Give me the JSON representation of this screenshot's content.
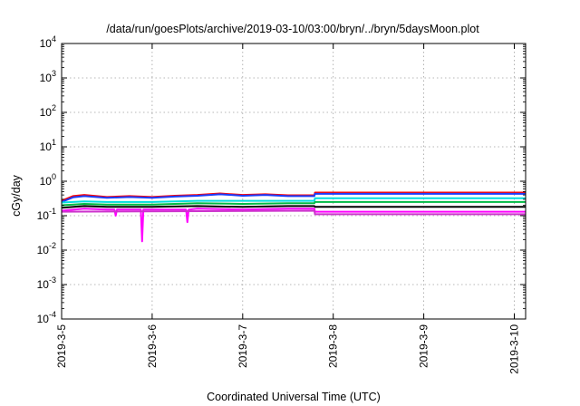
{
  "chart_data": {
    "type": "line",
    "title": "/data/run/goesPlots/archive/2019-03-10/03:00/bryn/../bryn/5daysMoon.plot",
    "xlabel": "Coordinated Universal Time (UTC)",
    "ylabel": "cGy/day",
    "yscale": "log",
    "ylim": [
      0.0001,
      10000
    ],
    "xlim": [
      "2019-03-05T00:00",
      "2019-03-10T03:00"
    ],
    "grid": true,
    "x_ticks": [
      "2019-3-5",
      "2019-3-6",
      "2019-3-7",
      "2019-3-8",
      "2019-3-9",
      "2019-3-10"
    ],
    "y_ticks": [
      {
        "base": "10",
        "exp": "-4"
      },
      {
        "base": "10",
        "exp": "-3"
      },
      {
        "base": "10",
        "exp": "-2"
      },
      {
        "base": "10",
        "exp": "-1"
      },
      {
        "base": "10",
        "exp": "0"
      },
      {
        "base": "10",
        "exp": "1"
      },
      {
        "base": "10",
        "exp": "2"
      },
      {
        "base": "10",
        "exp": "3"
      },
      {
        "base": "10",
        "exp": "4"
      }
    ],
    "series": [
      {
        "color": "#ff0000",
        "x": [
          "2019-03-05T00:00",
          "2019-03-05T03:00",
          "2019-03-05T06:00",
          "2019-03-05T12:00",
          "2019-03-05T18:00",
          "2019-03-06T00:00",
          "2019-03-06T06:00",
          "2019-03-06T12:00",
          "2019-03-06T18:00",
          "2019-03-07T00:00",
          "2019-03-07T06:00",
          "2019-03-07T12:00",
          "2019-03-07T19:00",
          "2019-03-07T19:10",
          "2019-03-08T00:00",
          "2019-03-09T00:00",
          "2019-03-10T03:00"
        ],
        "values": [
          0.27,
          0.37,
          0.4,
          0.35,
          0.37,
          0.35,
          0.38,
          0.4,
          0.44,
          0.4,
          0.42,
          0.39,
          0.39,
          0.47,
          0.47,
          0.47,
          0.47
        ]
      },
      {
        "color": "#1a3cff",
        "x": [
          "2019-03-05T00:00",
          "2019-03-05T03:00",
          "2019-03-05T06:00",
          "2019-03-05T12:00",
          "2019-03-05T18:00",
          "2019-03-06T00:00",
          "2019-03-06T06:00",
          "2019-03-06T12:00",
          "2019-03-06T18:00",
          "2019-03-07T00:00",
          "2019-03-07T06:00",
          "2019-03-07T12:00",
          "2019-03-07T19:00",
          "2019-03-07T19:10",
          "2019-03-08T00:00",
          "2019-03-09T00:00",
          "2019-03-10T03:00"
        ],
        "values": [
          0.25,
          0.34,
          0.37,
          0.33,
          0.35,
          0.33,
          0.36,
          0.38,
          0.42,
          0.38,
          0.4,
          0.37,
          0.37,
          0.43,
          0.43,
          0.43,
          0.43
        ]
      },
      {
        "color": "#00dddd",
        "x": [
          "2019-03-05T00:00",
          "2019-03-05T06:00",
          "2019-03-05T12:00",
          "2019-03-06T00:00",
          "2019-03-06T12:00",
          "2019-03-07T00:00",
          "2019-03-07T12:00",
          "2019-03-07T19:00",
          "2019-03-07T19:10",
          "2019-03-10T03:00"
        ],
        "values": [
          0.24,
          0.26,
          0.25,
          0.25,
          0.27,
          0.27,
          0.27,
          0.27,
          0.32,
          0.32
        ]
      },
      {
        "color": "#00bb44",
        "x": [
          "2019-03-05T00:00",
          "2019-03-05T06:00",
          "2019-03-05T12:00",
          "2019-03-06T00:00",
          "2019-03-06T12:00",
          "2019-03-07T00:00",
          "2019-03-07T12:00",
          "2019-03-07T19:00",
          "2019-03-07T19:10",
          "2019-03-10T03:00"
        ],
        "values": [
          0.2,
          0.22,
          0.21,
          0.21,
          0.23,
          0.22,
          0.23,
          0.23,
          0.25,
          0.25
        ]
      },
      {
        "color": "#000000",
        "x": [
          "2019-03-05T00:00",
          "2019-03-05T06:00",
          "2019-03-05T12:00",
          "2019-03-06T00:00",
          "2019-03-06T12:00",
          "2019-03-07T00:00",
          "2019-03-07T12:00",
          "2019-03-07T19:00",
          "2019-03-07T19:10",
          "2019-03-10T03:00"
        ],
        "values": [
          0.17,
          0.19,
          0.18,
          0.18,
          0.19,
          0.18,
          0.19,
          0.19,
          0.18,
          0.18
        ]
      },
      {
        "color": "#ff00ff",
        "x": [
          "2019-03-05T00:00",
          "2019-03-05T06:00",
          "2019-03-05T12:00",
          "2019-03-05T14:00",
          "2019-03-05T14:20",
          "2019-03-05T14:40",
          "2019-03-05T21:00",
          "2019-03-05T21:20",
          "2019-03-05T21:40",
          "2019-03-06T09:00",
          "2019-03-06T09:20",
          "2019-03-06T09:40",
          "2019-03-06T12:00",
          "2019-03-07T00:00",
          "2019-03-07T12:00",
          "2019-03-07T19:00",
          "2019-03-07T19:10",
          "2019-03-10T03:00"
        ],
        "values": [
          0.14,
          0.16,
          0.15,
          0.15,
          0.1,
          0.15,
          0.15,
          0.018,
          0.15,
          0.15,
          0.065,
          0.15,
          0.16,
          0.15,
          0.16,
          0.16,
          0.13,
          0.13
        ]
      },
      {
        "color": "#cc33cc",
        "x": [
          "2019-03-05T00:00",
          "2019-03-07T19:00",
          "2019-03-07T19:10",
          "2019-03-10T03:00"
        ],
        "values": [
          0.13,
          0.14,
          0.11,
          0.11
        ]
      }
    ]
  }
}
